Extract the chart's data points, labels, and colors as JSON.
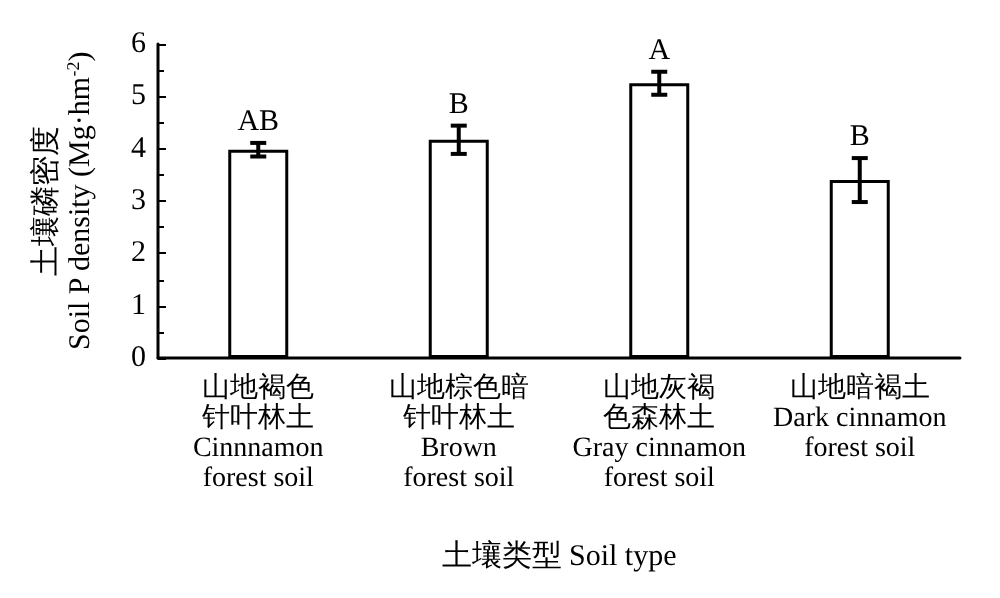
{
  "chart_data": {
    "type": "bar",
    "xlabel": "土壤类型 Soil type",
    "ylabel": "土壤磷密度\nSoil P density (Mg·hm$^{-2}$)",
    "categories": [
      "山地褐色针叶林土\nCinnnamon\nforest soil",
      "山地棕色暗针叶林土\nBrown\nforest soil",
      "山地灰褐色森林土\nGray cinnamon\nforest soil",
      "山地暗褐土\nDark cinnamon\nforest soil"
    ],
    "values": [
      3.98,
      4.17,
      5.25,
      3.4
    ],
    "errors": [
      0.13,
      0.27,
      0.22,
      0.42
    ],
    "color": "#ffffff",
    "ylim": [
      0,
      6
    ],
    "yticks": [
      0,
      1,
      2,
      3,
      4,
      5,
      6
    ],
    "annotations": [
      "AB",
      "B",
      "A",
      "B"
    ],
    "grid": false
  }
}
